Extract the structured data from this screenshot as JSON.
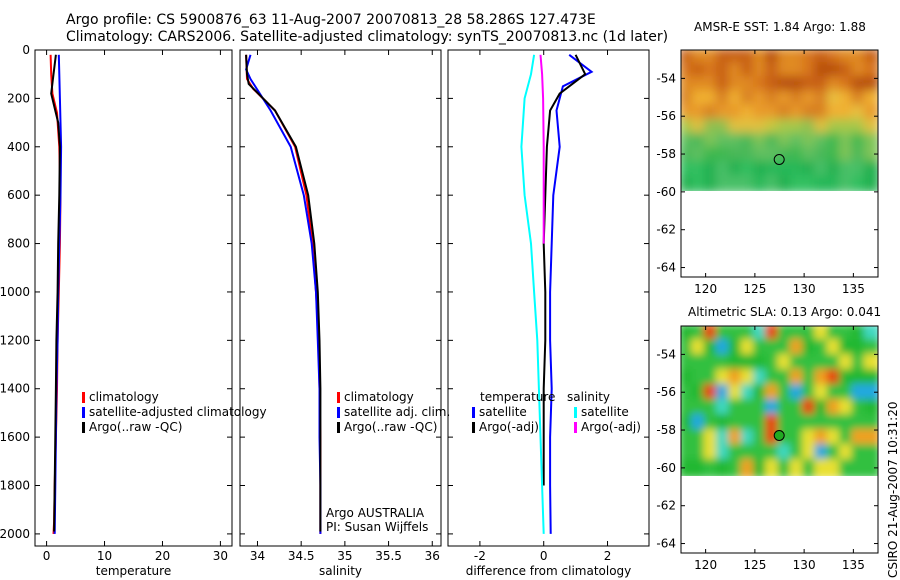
{
  "header": {
    "line1": "Argo profile: CS 5900876_63 11-Aug-2007 20070813_28 58.286S 127.473E",
    "line2": "Climatology: CARS2006. Satellite-adjusted climatology: synTS_20070813.nc (1d later)"
  },
  "colors": {
    "red": "#ff0000",
    "blue": "#0000ff",
    "black": "#000000",
    "cyan": "#00ffff",
    "magenta": "#ff00ff"
  },
  "chart_data": [
    {
      "type": "line",
      "name": "temperature",
      "xlabel": "temperature",
      "xlim": [
        -2,
        32
      ],
      "ylim": [
        2050,
        0
      ],
      "yreversed": true,
      "xticks": [
        0,
        10,
        20,
        30
      ],
      "yticks": [
        0,
        200,
        400,
        600,
        800,
        1000,
        1200,
        1400,
        1600,
        1800,
        2000
      ],
      "legend": {
        "placement": "lower-right",
        "entries": [
          "climatology",
          "satellite-adjusted climatology",
          "Argo(..raw -QC)"
        ]
      },
      "series": [
        {
          "name": "climatology",
          "color": "red",
          "x": [
            0.7,
            0.8,
            1.0,
            1.8,
            2.2,
            2.4,
            2.3,
            2.1,
            1.9,
            1.8,
            1.6,
            1.4,
            1.3,
            1.2
          ],
          "y": [
            20,
            100,
            180,
            260,
            400,
            600,
            800,
            1000,
            1200,
            1400,
            1600,
            1800,
            1950,
            2000
          ]
        },
        {
          "name": "satellite-adjusted climatology",
          "color": "blue",
          "x": [
            2.1,
            2.2,
            2.3,
            2.4,
            2.5,
            2.4,
            2.2,
            2.0,
            1.9,
            1.7,
            1.6,
            1.5,
            1.4
          ],
          "y": [
            20,
            100,
            200,
            300,
            400,
            600,
            800,
            1000,
            1200,
            1400,
            1600,
            1800,
            2000
          ]
        },
        {
          "name": "Argo(..raw -QC)",
          "color": "black",
          "x": [
            1.6,
            1.2,
            0.8,
            1.4,
            2.0,
            2.3,
            2.2,
            2.0,
            1.9,
            1.7,
            1.6,
            1.5,
            1.4,
            1.3
          ],
          "y": [
            20,
            100,
            180,
            240,
            300,
            400,
            600,
            800,
            1000,
            1200,
            1400,
            1600,
            1800,
            1990
          ]
        }
      ]
    },
    {
      "type": "line",
      "name": "salinity",
      "xlabel": "salinity",
      "xlim": [
        33.8,
        36.1
      ],
      "ylim": [
        2050,
        0
      ],
      "yreversed": true,
      "xticks": [
        34,
        34.5,
        35,
        35.5,
        36
      ],
      "xticklabels": [
        "34",
        "34.5",
        "35",
        "35.5",
        "36"
      ],
      "legend": {
        "placement": "lower-right",
        "entries": [
          "climatology",
          "satellite adj. clim.",
          "Argo(..raw -QC)"
        ]
      },
      "annotations": [
        "Argo AUSTRALIA",
        "PI: Susan Wijffels"
      ],
      "series": [
        {
          "name": "climatology",
          "color": "red",
          "x": [
            33.87,
            33.88,
            33.95,
            34.2,
            34.43,
            34.56,
            34.63,
            34.67,
            34.7,
            34.71,
            34.72,
            34.72,
            34.72
          ],
          "y": [
            20,
            120,
            160,
            250,
            400,
            600,
            800,
            1000,
            1200,
            1400,
            1600,
            1800,
            2000
          ]
        },
        {
          "name": "satellite adj. clim.",
          "color": "blue",
          "x": [
            33.92,
            33.87,
            33.92,
            34.15,
            34.38,
            34.53,
            34.62,
            34.67,
            34.69,
            34.71,
            34.71,
            34.72,
            34.72
          ],
          "y": [
            20,
            80,
            120,
            250,
            400,
            600,
            800,
            1000,
            1200,
            1400,
            1600,
            1800,
            2000
          ]
        },
        {
          "name": "Argo(..raw -QC)",
          "color": "black",
          "x": [
            33.87,
            33.88,
            33.9,
            34.2,
            34.44,
            34.58,
            34.65,
            34.69,
            34.71,
            34.72,
            34.72,
            34.72,
            34.72
          ],
          "y": [
            20,
            100,
            140,
            250,
            400,
            600,
            800,
            1000,
            1200,
            1400,
            1600,
            1800,
            1990
          ]
        }
      ]
    },
    {
      "type": "line",
      "name": "difference",
      "xlabel": "difference from climatology",
      "xlim": [
        -3,
        3.3
      ],
      "ylim": [
        2050,
        0
      ],
      "yreversed": true,
      "xticks": [
        -2,
        0,
        2
      ],
      "legend": {
        "placement": "lower-right",
        "headers": [
          "temperature",
          "salinity"
        ],
        "entries": [
          "satellite",
          "Argo(-adj)",
          "satellite",
          "Argo(-adj)"
        ]
      },
      "series": [
        {
          "name": "temperature satellite",
          "color": "blue",
          "x": [
            0.8,
            1.5,
            0.6,
            0.4,
            0.5,
            0.3,
            0.25,
            0.2,
            0.2,
            0.25,
            0.2,
            0.2,
            0.22
          ],
          "y": [
            20,
            90,
            150,
            250,
            400,
            600,
            800,
            1000,
            1200,
            1400,
            1600,
            1800,
            2000
          ]
        },
        {
          "name": "temperature Argo(-adj)",
          "color": "black",
          "x": [
            1.0,
            1.3,
            0.5,
            0.2,
            0.1,
            0.05,
            0.0,
            0.05,
            0.05,
            0.0,
            0.0,
            0.0
          ],
          "y": [
            20,
            100,
            180,
            250,
            400,
            600,
            800,
            1000,
            1200,
            1400,
            1600,
            1800
          ]
        },
        {
          "name": "salinity satellite",
          "color": "cyan",
          "x": [
            -0.3,
            -0.4,
            -0.6,
            -0.7,
            -0.6,
            -0.4,
            -0.3,
            -0.2,
            -0.15,
            -0.1,
            -0.05,
            0.0
          ],
          "y": [
            20,
            100,
            200,
            400,
            600,
            800,
            1000,
            1200,
            1400,
            1600,
            1800,
            2000
          ]
        },
        {
          "name": "salinity Argo(-adj)",
          "color": "magenta",
          "x": [
            -0.1,
            -0.05,
            -0.02,
            0.0,
            0.0,
            0.0
          ],
          "y": [
            20,
            100,
            200,
            400,
            600,
            800
          ]
        }
      ]
    },
    {
      "type": "heatmap",
      "name": "sst-map",
      "title": "AMSR-E SST: 1.84 Argo: 1.88",
      "xlim": [
        117.5,
        137.5
      ],
      "ylim": [
        -64.5,
        -52.5
      ],
      "xticks": [
        120,
        125,
        130,
        135
      ],
      "yticks": [
        -54,
        -56,
        -58,
        -60,
        -62,
        -64
      ],
      "data_extent_lat": [
        -60,
        -52.5
      ],
      "marker": {
        "lon": 127.473,
        "lat": -58.286
      }
    },
    {
      "type": "heatmap",
      "name": "sla-map",
      "title": "Altimetric SLA: 0.13 Argo: 0.041",
      "xlim": [
        117.5,
        137.5
      ],
      "ylim": [
        -64.5,
        -52.5
      ],
      "xticks": [
        120,
        125,
        130,
        135
      ],
      "yticks": [
        -54,
        -56,
        -58,
        -60,
        -62,
        -64
      ],
      "data_extent_lat": [
        -60,
        -52.5
      ],
      "marker": {
        "lon": 127.473,
        "lat": -58.286
      }
    }
  ],
  "stamp": "CSIRO 21-Aug-2007 10:31:20"
}
